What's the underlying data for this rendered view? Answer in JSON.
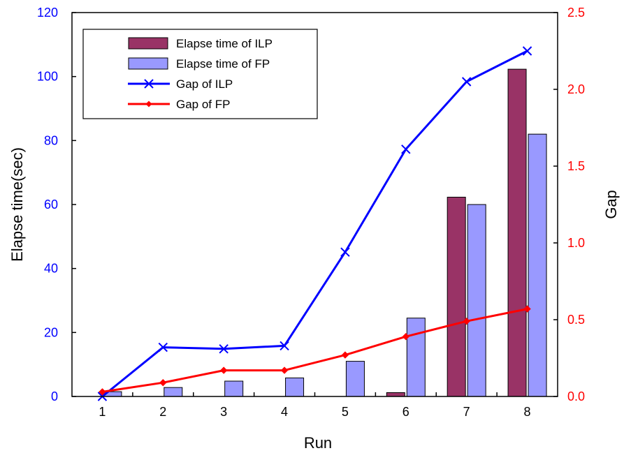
{
  "chart_data": {
    "type": "bar",
    "categories": [
      "1",
      "2",
      "3",
      "4",
      "5",
      "6",
      "7",
      "8"
    ],
    "xlabel": "Run",
    "ylabel": "Elapse time(sec)",
    "y2label": "Gap",
    "ylim": [
      0,
      120
    ],
    "y2lim": [
      0,
      2.5
    ],
    "yticks": [
      "0",
      "20",
      "40",
      "60",
      "80",
      "100",
      "120"
    ],
    "y2ticks": [
      "0.0",
      "0.5",
      "1.0",
      "1.5",
      "2.0",
      "2.5"
    ],
    "left_axis_color": "#0000FF",
    "right_axis_color": "#FF0000",
    "legend_position": "top-left",
    "grid": false,
    "series": [
      {
        "name": "Elapse time of ILP",
        "type": "bar",
        "axis": "left",
        "color": "#993366",
        "values": [
          0,
          0,
          0,
          0,
          0,
          1.2,
          62.3,
          102.3
        ]
      },
      {
        "name": "Elapse time of FP",
        "type": "bar",
        "axis": "left",
        "color": "#9999FF",
        "values": [
          1.5,
          2.8,
          4.8,
          5.8,
          11.0,
          24.5,
          60.0,
          82.0
        ]
      },
      {
        "name": "Gap of ILP",
        "type": "line",
        "axis": "right",
        "color": "#0000FF",
        "marker": "x",
        "values": [
          0.0,
          0.32,
          0.31,
          0.33,
          0.94,
          1.61,
          2.05,
          2.25
        ]
      },
      {
        "name": "Gap of FP",
        "type": "line",
        "axis": "right",
        "color": "#FF0000",
        "marker": "diamond",
        "values": [
          0.03,
          0.09,
          0.17,
          0.17,
          0.27,
          0.39,
          0.49,
          0.57
        ]
      }
    ]
  }
}
